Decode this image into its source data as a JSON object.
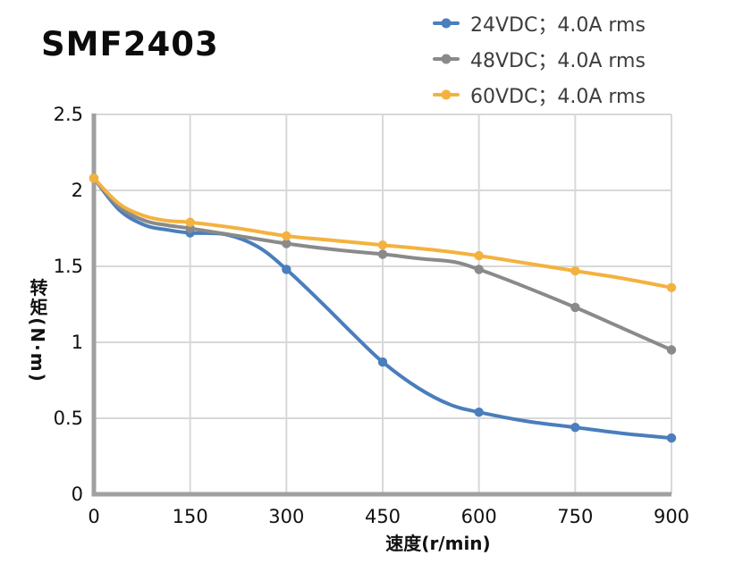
{
  "title": "SMF2403",
  "legend": {
    "items": [
      {
        "label": "24VDC；4.0A rms",
        "color": "#4a7ebc"
      },
      {
        "label": "48VDC；4.0A rms",
        "color": "#8a8a8a"
      },
      {
        "label": "60VDC；4.0A rms",
        "color": "#f3b23f"
      }
    ]
  },
  "chart_data": {
    "type": "line",
    "title": "SMF2403",
    "xlabel": "速度(r/min)",
    "ylabel": "转矩(N·m)",
    "xlim": [
      0,
      900
    ],
    "ylim": [
      0,
      2.5
    ],
    "grid": true,
    "legend_position": "top-right",
    "x": [
      0,
      150,
      300,
      450,
      600,
      750,
      900
    ],
    "x_tick_labels": [
      "0",
      "150",
      "300",
      "450",
      "600",
      "750",
      "900"
    ],
    "y_ticks": [
      0,
      0.5,
      1,
      1.5,
      2,
      2.5
    ],
    "y_tick_labels": [
      "0",
      "0.5",
      "1",
      "1.5",
      "2",
      "2.5"
    ],
    "series": [
      {
        "name": "24VDC；4.0A rms",
        "color": "#4a7ebc",
        "values": [
          2.08,
          1.72,
          1.48,
          0.87,
          0.54,
          0.44,
          0.37
        ],
        "curve_samples": [
          [
            0,
            2.08
          ],
          [
            40,
            1.87
          ],
          [
            80,
            1.77
          ],
          [
            115,
            1.74
          ],
          [
            150,
            1.72
          ],
          [
            205,
            1.71
          ],
          [
            255,
            1.63
          ],
          [
            300,
            1.48
          ],
          [
            355,
            1.26
          ],
          [
            405,
            1.05
          ],
          [
            450,
            0.87
          ],
          [
            505,
            0.7
          ],
          [
            555,
            0.59
          ],
          [
            600,
            0.54
          ],
          [
            675,
            0.48
          ],
          [
            750,
            0.44
          ],
          [
            825,
            0.4
          ],
          [
            900,
            0.37
          ]
        ]
      },
      {
        "name": "48VDC；4.0A rms",
        "color": "#8a8a8a",
        "values": [
          2.08,
          1.75,
          1.65,
          1.58,
          1.48,
          1.23,
          0.95
        ],
        "curve_samples": [
          [
            0,
            2.08
          ],
          [
            40,
            1.89
          ],
          [
            80,
            1.8
          ],
          [
            115,
            1.77
          ],
          [
            150,
            1.75
          ],
          [
            225,
            1.7
          ],
          [
            300,
            1.65
          ],
          [
            375,
            1.61
          ],
          [
            450,
            1.58
          ],
          [
            510,
            1.55
          ],
          [
            560,
            1.53
          ],
          [
            600,
            1.48
          ],
          [
            675,
            1.36
          ],
          [
            750,
            1.23
          ],
          [
            825,
            1.09
          ],
          [
            900,
            0.95
          ]
        ]
      },
      {
        "name": "60VDC；4.0A rms",
        "color": "#f3b23f",
        "values": [
          2.08,
          1.79,
          1.7,
          1.64,
          1.57,
          1.47,
          1.36
        ],
        "curve_samples": [
          [
            0,
            2.08
          ],
          [
            40,
            1.91
          ],
          [
            80,
            1.83
          ],
          [
            115,
            1.8
          ],
          [
            150,
            1.79
          ],
          [
            225,
            1.75
          ],
          [
            300,
            1.7
          ],
          [
            375,
            1.67
          ],
          [
            450,
            1.64
          ],
          [
            525,
            1.61
          ],
          [
            600,
            1.57
          ],
          [
            675,
            1.52
          ],
          [
            750,
            1.47
          ],
          [
            825,
            1.42
          ],
          [
            900,
            1.36
          ]
        ]
      }
    ],
    "style": {
      "grid_color": "#d8d8d8",
      "spine_color": "#a0a0a0",
      "tick_color": "#111111"
    }
  }
}
